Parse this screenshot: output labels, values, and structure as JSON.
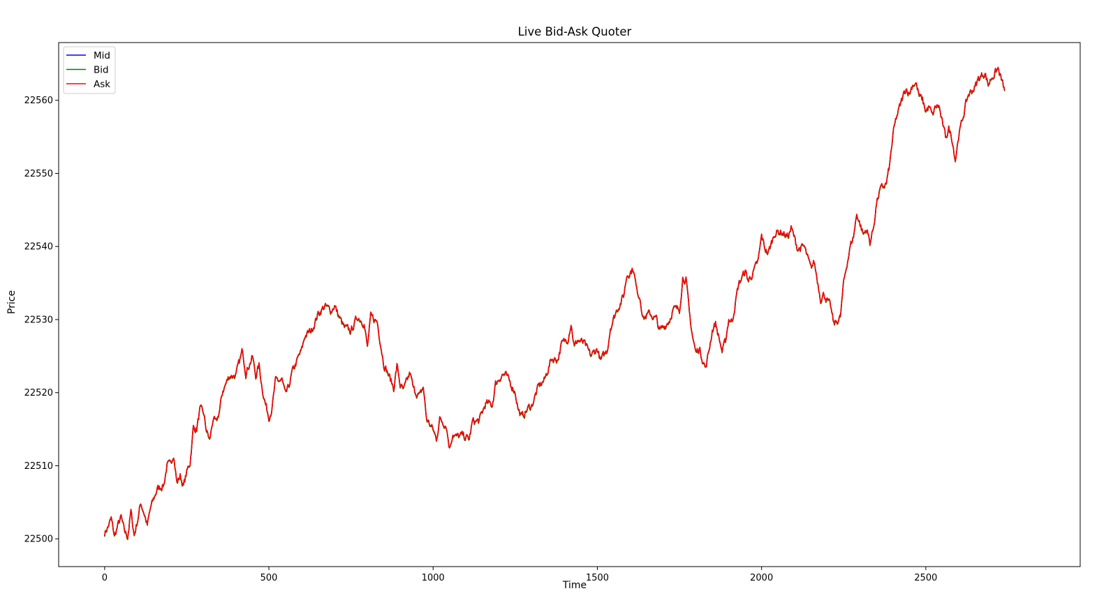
{
  "chart_data": {
    "type": "line",
    "title": "Live Bid-Ask Quoter",
    "xlabel": "Time",
    "ylabel": "Price",
    "xlim": [
      -140,
      2970
    ],
    "ylim": [
      22496.2,
      22567.9
    ],
    "xticks": [
      0,
      500,
      1000,
      1500,
      2000,
      2500
    ],
    "yticks": [
      22500,
      22510,
      22520,
      22530,
      22540,
      22550,
      22560
    ],
    "grid": false,
    "legend_position": "top-left",
    "spread": 0.1,
    "series": [
      {
        "name": "Mid",
        "color": "#0000ff"
      },
      {
        "name": "Bid",
        "color": "#008000"
      },
      {
        "name": "Ask",
        "color": "#ff0000"
      }
    ],
    "mid_keypoints": [
      [
        0,
        22500.8
      ],
      [
        10,
        22501.6
      ],
      [
        20,
        22502.7
      ],
      [
        30,
        22500.3
      ],
      [
        40,
        22501.8
      ],
      [
        50,
        22502.9
      ],
      [
        60,
        22501.0
      ],
      [
        70,
        22500.3
      ],
      [
        80,
        22503.7
      ],
      [
        90,
        22500.5
      ],
      [
        100,
        22502.5
      ],
      [
        110,
        22504.9
      ],
      [
        120,
        22503.6
      ],
      [
        130,
        22501.8
      ],
      [
        140,
        22504.2
      ],
      [
        150,
        22505.5
      ],
      [
        160,
        22506.8
      ],
      [
        180,
        22507.4
      ],
      [
        190,
        22510.1
      ],
      [
        200,
        22510.0
      ],
      [
        210,
        22511.8
      ],
      [
        220,
        22507.6
      ],
      [
        230,
        22508.6
      ],
      [
        240,
        22507.2
      ],
      [
        250,
        22509.1
      ],
      [
        260,
        22510.4
      ],
      [
        270,
        22515.2
      ],
      [
        280,
        22515.0
      ],
      [
        290,
        22517.6
      ],
      [
        300,
        22517.3
      ],
      [
        310,
        22514.8
      ],
      [
        320,
        22513.4
      ],
      [
        330,
        22516.4
      ],
      [
        340,
        22515.7
      ],
      [
        350,
        22517.6
      ],
      [
        360,
        22520.3
      ],
      [
        380,
        22522.3
      ],
      [
        400,
        22522.4
      ],
      [
        420,
        22525.8
      ],
      [
        430,
        22522.8
      ],
      [
        450,
        22524.9
      ],
      [
        460,
        22522.3
      ],
      [
        470,
        22523.7
      ],
      [
        480,
        22520.6
      ],
      [
        490,
        22518.4
      ],
      [
        500,
        22516.7
      ],
      [
        510,
        22518.0
      ],
      [
        520,
        22521.5
      ],
      [
        540,
        22521.7
      ],
      [
        550,
        22519.6
      ],
      [
        560,
        22520.6
      ],
      [
        570,
        22522.6
      ],
      [
        590,
        22524.8
      ],
      [
        600,
        22525.8
      ],
      [
        610,
        22527.8
      ],
      [
        630,
        22528.5
      ],
      [
        650,
        22530.8
      ],
      [
        670,
        22531.8
      ],
      [
        690,
        22531.2
      ],
      [
        700,
        22532.0
      ],
      [
        710,
        22530.7
      ],
      [
        730,
        22528.8
      ],
      [
        750,
        22528.4
      ],
      [
        770,
        22530.4
      ],
      [
        790,
        22529.6
      ],
      [
        800,
        22526.1
      ],
      [
        810,
        22530.3
      ],
      [
        830,
        22529.7
      ],
      [
        850,
        22524.0
      ],
      [
        860,
        22522.9
      ],
      [
        870,
        22521.8
      ],
      [
        880,
        22520.6
      ],
      [
        890,
        22523.7
      ],
      [
        900,
        22521.0
      ],
      [
        910,
        22520.2
      ],
      [
        930,
        22522.7
      ],
      [
        940,
        22520.4
      ],
      [
        960,
        22519.5
      ],
      [
        970,
        22520.8
      ],
      [
        980,
        22516.4
      ],
      [
        1000,
        22514.9
      ],
      [
        1010,
        22513.6
      ],
      [
        1020,
        22516.4
      ],
      [
        1040,
        22515.6
      ],
      [
        1050,
        22512.4
      ],
      [
        1060,
        22514.5
      ],
      [
        1070,
        22513.9
      ],
      [
        1090,
        22514.1
      ],
      [
        1110,
        22513.6
      ],
      [
        1120,
        22516.0
      ],
      [
        1140,
        22516.1
      ],
      [
        1160,
        22518.5
      ],
      [
        1180,
        22518.3
      ],
      [
        1190,
        22521.2
      ],
      [
        1210,
        22522.5
      ],
      [
        1220,
        22522.4
      ],
      [
        1240,
        22520.9
      ],
      [
        1250,
        22520.1
      ],
      [
        1260,
        22517.6
      ],
      [
        1270,
        22516.6
      ],
      [
        1290,
        22517.9
      ],
      [
        1300,
        22518.2
      ],
      [
        1320,
        22520.7
      ],
      [
        1340,
        22521.8
      ],
      [
        1360,
        22524.6
      ],
      [
        1380,
        22524.6
      ],
      [
        1390,
        22526.5
      ],
      [
        1410,
        22527.4
      ],
      [
        1420,
        22529.6
      ],
      [
        1430,
        22526.2
      ],
      [
        1440,
        22527.2
      ],
      [
        1460,
        22526.7
      ],
      [
        1480,
        22525.0
      ],
      [
        1500,
        22526.0
      ],
      [
        1510,
        22524.3
      ],
      [
        1530,
        22525.8
      ],
      [
        1540,
        22529.0
      ],
      [
        1560,
        22531.4
      ],
      [
        1580,
        22533.2
      ],
      [
        1590,
        22536.1
      ],
      [
        1610,
        22537.0
      ],
      [
        1620,
        22533.9
      ],
      [
        1630,
        22533.1
      ],
      [
        1640,
        22530.2
      ],
      [
        1660,
        22530.8
      ],
      [
        1680,
        22530.0
      ],
      [
        1690,
        22528.4
      ],
      [
        1710,
        22529.4
      ],
      [
        1720,
        22530.0
      ],
      [
        1730,
        22531.4
      ],
      [
        1750,
        22531.3
      ],
      [
        1760,
        22535.8
      ],
      [
        1770,
        22535.5
      ],
      [
        1780,
        22530.8
      ],
      [
        1790,
        22527.7
      ],
      [
        1800,
        22525.4
      ],
      [
        1810,
        22526.1
      ],
      [
        1830,
        22523.3
      ],
      [
        1840,
        22525.8
      ],
      [
        1850,
        22528.6
      ],
      [
        1860,
        22529.5
      ],
      [
        1880,
        22525.6
      ],
      [
        1890,
        22526.9
      ],
      [
        1900,
        22530.1
      ],
      [
        1910,
        22529.7
      ],
      [
        1930,
        22534.8
      ],
      [
        1950,
        22536.6
      ],
      [
        1960,
        22535.3
      ],
      [
        1980,
        22536.9
      ],
      [
        1990,
        22538.0
      ],
      [
        2000,
        22541.4
      ],
      [
        2010,
        22539.8
      ],
      [
        2020,
        22539.0
      ],
      [
        2040,
        22541.9
      ],
      [
        2060,
        22542.0
      ],
      [
        2080,
        22541.3
      ],
      [
        2090,
        22542.5
      ],
      [
        2110,
        22539.7
      ],
      [
        2130,
        22539.9
      ],
      [
        2150,
        22536.9
      ],
      [
        2160,
        22537.9
      ],
      [
        2180,
        22532.9
      ],
      [
        2190,
        22533.5
      ],
      [
        2210,
        22531.7
      ],
      [
        2220,
        22529.3
      ],
      [
        2240,
        22530.3
      ],
      [
        2250,
        22535.0
      ],
      [
        2260,
        22537.7
      ],
      [
        2270,
        22540.0
      ],
      [
        2280,
        22541.4
      ],
      [
        2290,
        22544.5
      ],
      [
        2310,
        22541.6
      ],
      [
        2320,
        22542.4
      ],
      [
        2330,
        22540.5
      ],
      [
        2340,
        22542.4
      ],
      [
        2350,
        22545.9
      ],
      [
        2360,
        22547.6
      ],
      [
        2380,
        22548.6
      ],
      [
        2390,
        22551.1
      ],
      [
        2400,
        22555.2
      ],
      [
        2410,
        22557.5
      ],
      [
        2430,
        22560.4
      ],
      [
        2440,
        22561.7
      ],
      [
        2450,
        22560.9
      ],
      [
        2460,
        22562.2
      ],
      [
        2470,
        22562.4
      ],
      [
        2480,
        22560.5
      ],
      [
        2490,
        22560.0
      ],
      [
        2500,
        22558.5
      ],
      [
        2510,
        22559.1
      ],
      [
        2520,
        22557.8
      ],
      [
        2530,
        22559.1
      ],
      [
        2540,
        22559.2
      ],
      [
        2550,
        22556.9
      ],
      [
        2560,
        22554.9
      ],
      [
        2570,
        22556.1
      ],
      [
        2580,
        22554.8
      ],
      [
        2590,
        22551.9
      ],
      [
        2600,
        22555.2
      ],
      [
        2610,
        22557.0
      ],
      [
        2620,
        22559.1
      ],
      [
        2630,
        22560.8
      ],
      [
        2650,
        22561.8
      ],
      [
        2660,
        22562.9
      ],
      [
        2680,
        22563.8
      ],
      [
        2690,
        22562.1
      ],
      [
        2700,
        22563.1
      ],
      [
        2720,
        22564.3
      ],
      [
        2740,
        22561.3
      ]
    ]
  }
}
